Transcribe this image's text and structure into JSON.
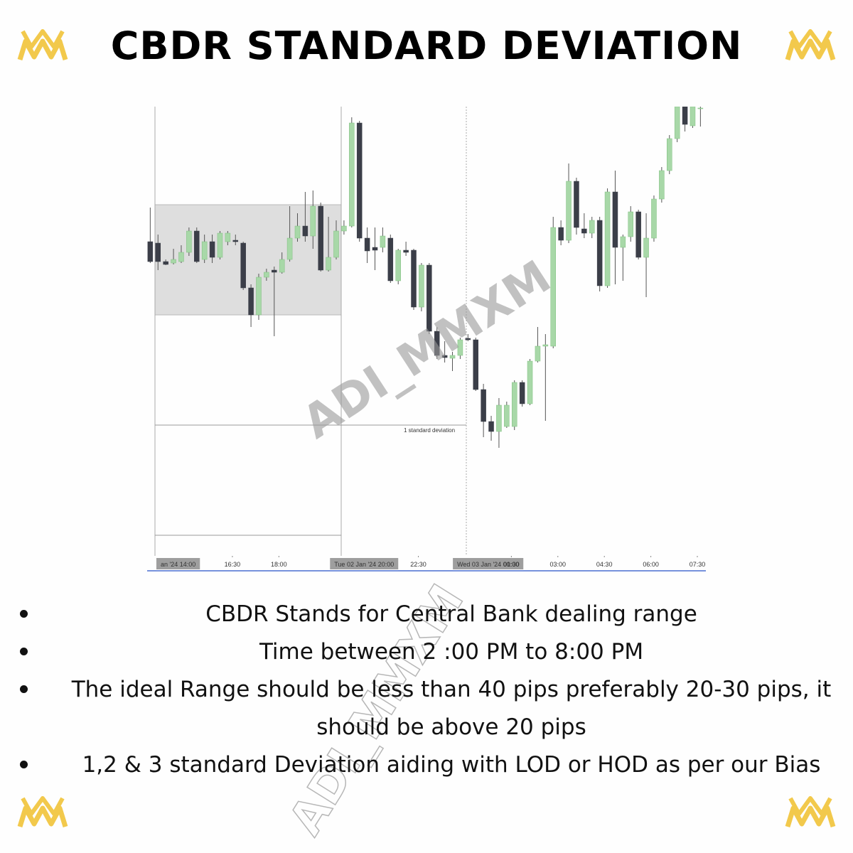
{
  "title": "CBDR STANDARD DEVIATION",
  "watermark": "ADI_MMXM",
  "chart_data": {
    "type": "candlestick",
    "annotation": "1 standard deviation",
    "up_color": "#a8d8a8",
    "down_color": "#3b3e48",
    "ylim": [
      0,
      630
    ],
    "xlim": [
      -0.4,
      71.7
    ],
    "xticks": [
      {
        "value": 3.6,
        "label": "an '24  14:00"
      },
      {
        "value": 10.6,
        "label": "16:30"
      },
      {
        "value": 16.6,
        "label": "18:00"
      },
      {
        "value": 27.6,
        "label": "Tue 02 Jan '24  20:00"
      },
      {
        "value": 34.6,
        "label": "22:30"
      },
      {
        "value": 43.6,
        "label": "Wed 03 Jan '24  00:00"
      },
      {
        "value": 46.6,
        "label": "01:30"
      },
      {
        "value": 52.6,
        "label": "03:00"
      },
      {
        "value": 58.6,
        "label": "04:30"
      },
      {
        "value": 64.6,
        "label": "06:00"
      },
      {
        "value": 70.6,
        "label": "07:30"
      }
    ],
    "open": [
      440,
      438,
      412,
      410,
      412,
      425,
      455,
      415,
      440,
      418,
      440,
      442,
      438,
      375,
      337,
      390,
      400,
      397,
      415,
      445,
      462,
      448,
      490,
      400,
      418,
      455,
      462,
      607,
      445,
      432,
      432,
      445,
      385,
      428,
      428,
      348,
      407,
      314,
      280,
      276,
      280,
      304,
      302,
      232,
      187,
      173,
      180,
      180,
      242,
      212,
      272,
      293,
      293,
      460,
      442,
      525,
      458,
      452,
      470,
      378,
      510,
      432,
      447,
      482,
      418,
      445,
      500,
      540,
      585,
      630,
      603,
      628
    ],
    "high": [
      488,
      450,
      415,
      430,
      435,
      460,
      460,
      450,
      450,
      455,
      455,
      450,
      440,
      380,
      395,
      402,
      405,
      425,
      490,
      480,
      510,
      512,
      495,
      475,
      470,
      470,
      615,
      610,
      460,
      460,
      460,
      450,
      430,
      440,
      430,
      410,
      410,
      320,
      300,
      285,
      305,
      310,
      305,
      240,
      195,
      220,
      215,
      245,
      245,
      275,
      320,
      310,
      475,
      470,
      550,
      530,
      480,
      475,
      475,
      515,
      540,
      450,
      490,
      485,
      480,
      505,
      545,
      590,
      640,
      640,
      635,
      630
    ],
    "low": [
      410,
      400,
      407,
      408,
      410,
      420,
      410,
      410,
      410,
      415,
      435,
      435,
      372,
      320,
      330,
      385,
      307,
      395,
      412,
      440,
      440,
      430,
      398,
      398,
      415,
      450,
      460,
      440,
      410,
      400,
      425,
      382,
      380,
      420,
      344,
      342,
      310,
      275,
      270,
      258,
      275,
      300,
      230,
      165,
      160,
      150,
      178,
      175,
      208,
      210,
      270,
      188,
      290,
      435,
      438,
      450,
      445,
      445,
      370,
      375,
      380,
      385,
      440,
      415,
      362,
      440,
      495,
      535,
      580,
      595,
      600,
      602
    ],
    "close": [
      412,
      412,
      408,
      415,
      425,
      455,
      412,
      440,
      418,
      452,
      452,
      440,
      375,
      337,
      390,
      397,
      397,
      415,
      445,
      462,
      448,
      490,
      400,
      418,
      455,
      462,
      607,
      445,
      427,
      428,
      448,
      385,
      428,
      425,
      348,
      407,
      314,
      280,
      277,
      280,
      302,
      302,
      232,
      187,
      173,
      210,
      210,
      242,
      212,
      272,
      293,
      295,
      460,
      442,
      525,
      460,
      452,
      470,
      378,
      510,
      432,
      447,
      482,
      418,
      445,
      500,
      540,
      585,
      630,
      605,
      630,
      628
    ]
  },
  "bullets": [
    "CBDR Stands for Central Bank dealing range",
    "Time between 2 :00 PM to 8:00 PM",
    "The ideal Range should be less than 40 pips preferably 20-30 pips, it should be above 20 pips",
    "1,2 & 3 standard Deviation aiding with LOD or HOD as per our Bias"
  ]
}
